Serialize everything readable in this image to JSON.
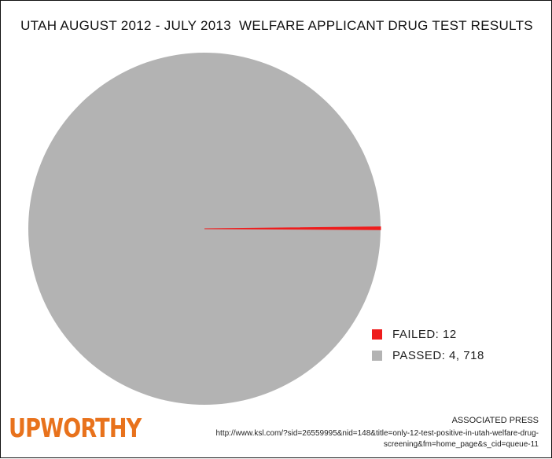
{
  "chart_data": {
    "type": "pie",
    "title": "UTAH AUGUST 2012 - JULY 2013  WELFARE APPLICANT DRUG TEST RESULTS",
    "slices": [
      {
        "label": "FAILED: 12",
        "value": 12,
        "color": "#ee1c1c"
      },
      {
        "label": "PASSED: 4, 718",
        "value": 4718,
        "color": "#b3b3b3"
      }
    ],
    "legend_placement": "bottom-right"
  },
  "brand": {
    "logo_text": "UPWORTHY",
    "logo_color": "#e8721c"
  },
  "source": {
    "name": "ASSOCIATED PRESS",
    "url": "http://www.ksl.com/?sid=26559995&nid=148&title=only-12-test-positive-in-utah-welfare-drug-screening&fm=home_page&s_cid=queue-11"
  }
}
